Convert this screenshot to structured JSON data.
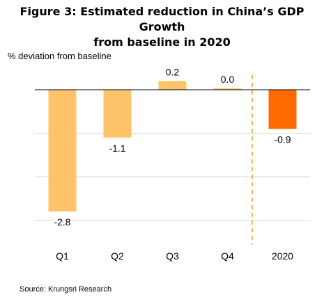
{
  "chart_data": {
    "type": "bar",
    "title_line1": "Figure 3: Estimated reduction in China’s GDP Growth",
    "title_line2": "from baseline in 2020",
    "ylabel": "% deviation from baseline",
    "categories": [
      "Q1",
      "Q2",
      "Q3",
      "Q4",
      "2020"
    ],
    "values": [
      -2.8,
      -1.1,
      0.2,
      0.0,
      -0.9
    ],
    "data_labels": [
      "-2.8",
      "-1.1",
      "0.2",
      "0.0",
      "-0.9"
    ],
    "bar_colors": [
      "#ffc469",
      "#ffc469",
      "#ffc469",
      "#ffc469",
      "#ff6a00"
    ],
    "ylim": [
      -3.5,
      0.5
    ],
    "grid": true,
    "divider": "dashed line between Q4 and 2020"
  },
  "source": "Source: Krungsri Research",
  "colors": {
    "grid": "#d9d9d9",
    "axis": "#000000",
    "divider": "#e0a030"
  }
}
